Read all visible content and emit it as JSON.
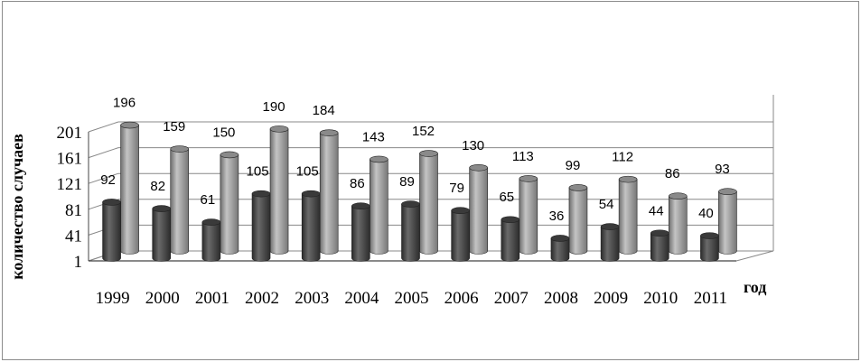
{
  "chart_data": {
    "type": "bar",
    "style": "3d-cylinder",
    "categories": [
      "1999",
      "2000",
      "2001",
      "2002",
      "2003",
      "2004",
      "2005",
      "2006",
      "2007",
      "2008",
      "2009",
      "2010",
      "2011"
    ],
    "series": [
      {
        "values": [
          92,
          82,
          61,
          105,
          105,
          86,
          89,
          79,
          65,
          36,
          54,
          44,
          40
        ],
        "color": "#4a4a4a"
      },
      {
        "values": [
          196,
          159,
          150,
          190,
          184,
          143,
          152,
          130,
          113,
          99,
          112,
          86,
          93
        ],
        "color": "#9a9a9a"
      }
    ],
    "y_ticks": [
      "1",
      "41",
      "81",
      "121",
      "161",
      "201"
    ],
    "ylim": [
      1,
      201
    ],
    "ylabel": "количество случаев",
    "xlabel": "год",
    "grid": true,
    "legend": "none"
  }
}
